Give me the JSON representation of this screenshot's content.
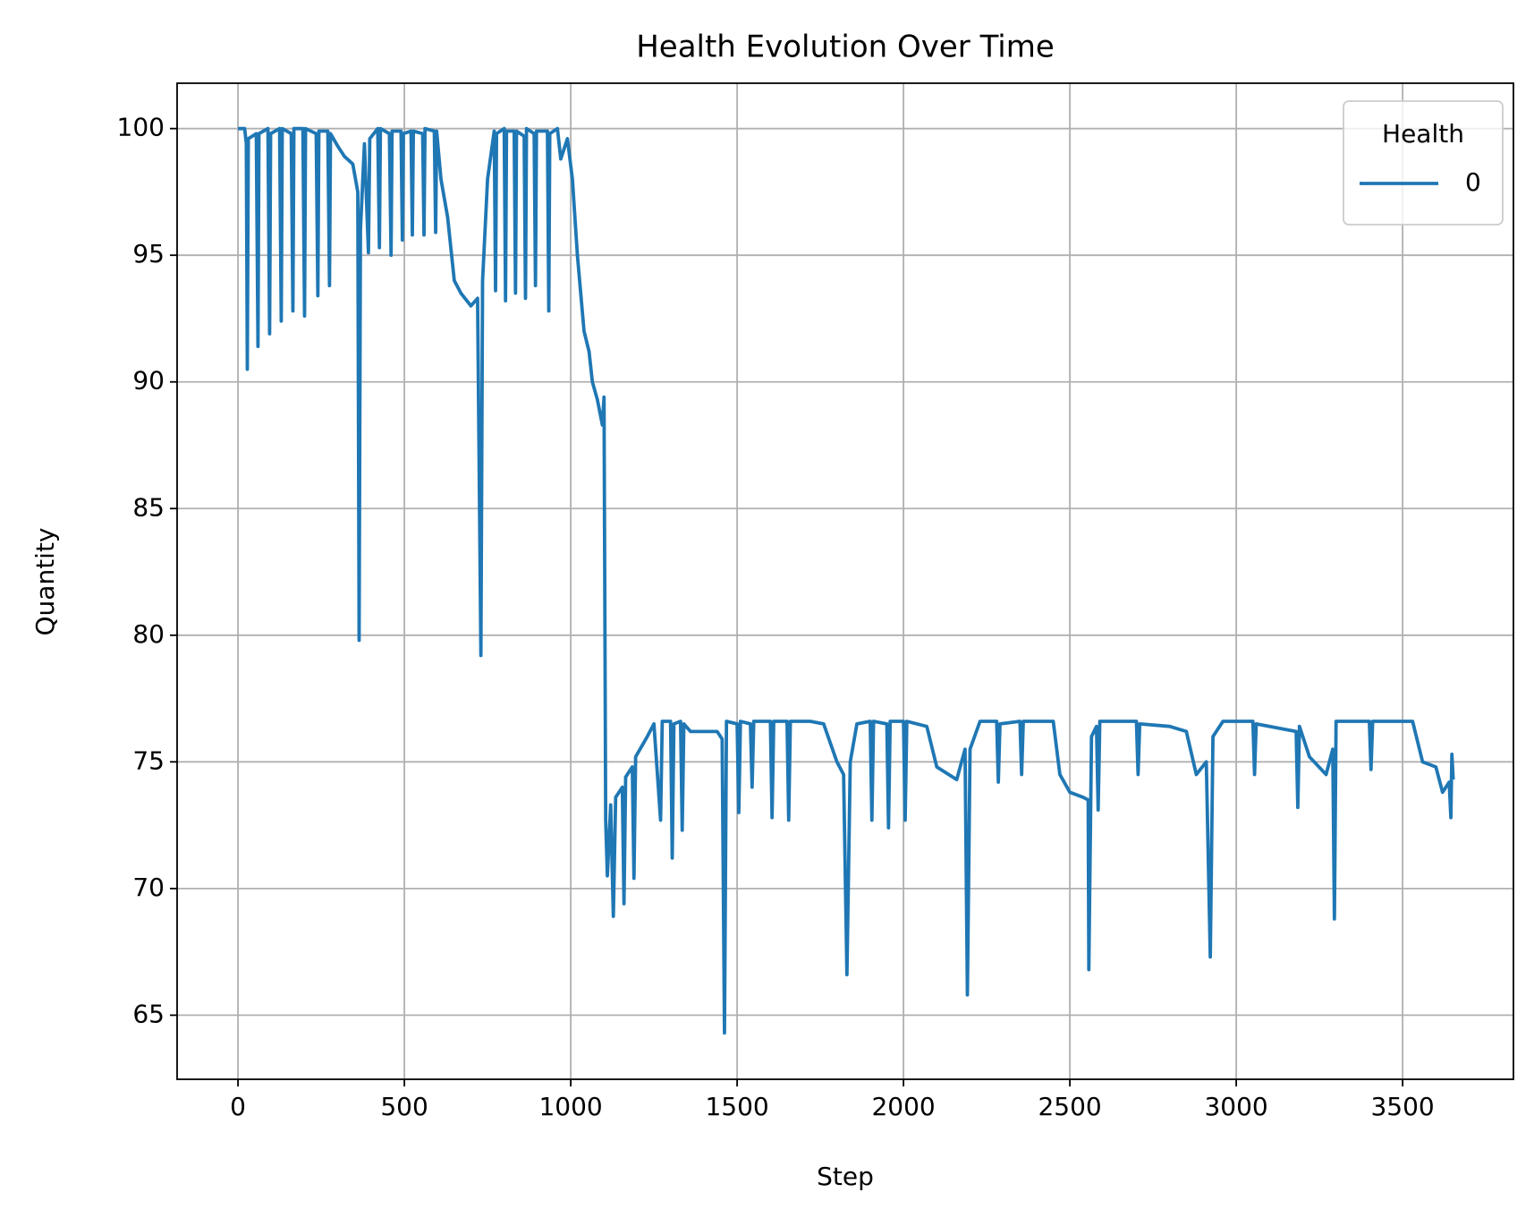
{
  "chart_data": {
    "type": "line",
    "title": "Health Evolution Over Time",
    "xlabel": "Step",
    "ylabel": "Quantity",
    "x": [
      0,
      20,
      25,
      28,
      31,
      55,
      60,
      63,
      90,
      95,
      98,
      125,
      130,
      133,
      160,
      165,
      168,
      195,
      200,
      203,
      235,
      240,
      243,
      270,
      275,
      278,
      300,
      320,
      345,
      360,
      364,
      368,
      380,
      392,
      396,
      420,
      425,
      428,
      455,
      460,
      463,
      490,
      494,
      497,
      520,
      524,
      527,
      555,
      559,
      562,
      590,
      594,
      597,
      610,
      630,
      650,
      670,
      700,
      720,
      730,
      735,
      750,
      770,
      774,
      777,
      800,
      804,
      807,
      830,
      834,
      837,
      860,
      864,
      867,
      890,
      894,
      897,
      930,
      934,
      937,
      960,
      970,
      990,
      1005,
      1020,
      1040,
      1055,
      1065,
      1080,
      1095,
      1100,
      1105,
      1110,
      1120,
      1128,
      1135,
      1155,
      1160,
      1165,
      1185,
      1190,
      1195,
      1230,
      1250,
      1270,
      1275,
      1300,
      1305,
      1310,
      1330,
      1335,
      1340,
      1360,
      1440,
      1455,
      1462,
      1468,
      1500,
      1505,
      1510,
      1540,
      1545,
      1550,
      1600,
      1605,
      1610,
      1650,
      1655,
      1660,
      1700,
      1720,
      1760,
      1800,
      1820,
      1830,
      1840,
      1860,
      1900,
      1905,
      1910,
      1950,
      1955,
      1960,
      2000,
      2005,
      2010,
      2070,
      2100,
      2160,
      2185,
      2192,
      2200,
      2230,
      2280,
      2285,
      2290,
      2350,
      2355,
      2360,
      2450,
      2470,
      2500,
      2540,
      2555,
      2557,
      2565,
      2580,
      2585,
      2590,
      2700,
      2705,
      2710,
      2800,
      2850,
      2880,
      2910,
      2922,
      2930,
      2960,
      3050,
      3055,
      3060,
      3180,
      3185,
      3190,
      3220,
      3270,
      3290,
      3295,
      3300,
      3400,
      3405,
      3410,
      3530,
      3560,
      3600,
      3620,
      3640,
      3645,
      3648,
      3652
    ],
    "series": [
      {
        "name": "0",
        "color": "#1f77b4",
        "values": [
          100,
          100,
          99.4,
          90.5,
          99.6,
          99.8,
          91.4,
          99.8,
          100,
          91.9,
          99.8,
          100,
          92.4,
          100,
          99.8,
          92.8,
          100,
          100,
          92.6,
          100,
          99.8,
          93.4,
          99.9,
          99.9,
          93.8,
          99.8,
          99.3,
          98.9,
          98.6,
          97.5,
          79.8,
          96,
          99.4,
          95.1,
          99.6,
          100,
          95.3,
          100,
          99.8,
          95,
          99.9,
          99.9,
          95.6,
          99.8,
          99.9,
          95.8,
          99.9,
          99.8,
          95.8,
          100,
          99.9,
          95.9,
          99.9,
          98,
          96.5,
          94,
          93.5,
          93,
          93.3,
          79.2,
          94,
          98,
          99.9,
          93.6,
          99.8,
          100,
          93.2,
          99.9,
          99.9,
          93.5,
          99.9,
          99.7,
          93.3,
          100,
          99.8,
          93.8,
          99.9,
          99.9,
          92.8,
          99.8,
          100,
          98.8,
          99.6,
          98,
          95,
          92,
          91.2,
          90,
          89.3,
          88.3,
          89.4,
          72.7,
          70.5,
          73.3,
          68.9,
          73.6,
          74,
          69.4,
          74.4,
          74.8,
          70.4,
          75.2,
          76,
          76.5,
          72.7,
          76.6,
          76.6,
          71.2,
          76.5,
          76.6,
          72.3,
          76.5,
          76.2,
          76.2,
          75.9,
          64.3,
          76.6,
          76.5,
          73,
          76.6,
          76.5,
          74,
          76.6,
          76.6,
          72.8,
          76.6,
          76.6,
          72.7,
          76.6,
          76.6,
          76.6,
          76.5,
          75,
          74.5,
          66.6,
          75,
          76.5,
          76.6,
          72.7,
          76.6,
          76.5,
          72.4,
          76.6,
          76.6,
          72.7,
          76.6,
          76.4,
          74.8,
          74.3,
          75.5,
          65.8,
          75.5,
          76.6,
          76.6,
          74.2,
          76.5,
          76.6,
          74.5,
          76.6,
          76.6,
          74.5,
          73.8,
          73.6,
          73.5,
          66.8,
          76,
          76.4,
          73.1,
          76.6,
          76.6,
          74.5,
          76.5,
          76.4,
          76.2,
          74.5,
          75,
          67.3,
          76,
          76.6,
          76.6,
          74.5,
          76.5,
          76.2,
          73.2,
          76.4,
          75.2,
          74.5,
          75.5,
          68.8,
          76.6,
          76.6,
          74.7,
          76.6,
          76.6,
          75,
          74.8,
          73.8,
          74.2,
          72.8,
          75.3,
          74.3
        ]
      }
    ],
    "legend_title": "Health",
    "legend": "upper right",
    "xlim": [
      -183,
      3833
    ],
    "ylim": [
      62.47,
      101.79
    ],
    "xticks": [
      0,
      500,
      1000,
      1500,
      2000,
      2500,
      3000,
      3500
    ],
    "yticks": [
      65,
      70,
      75,
      80,
      85,
      90,
      95,
      100
    ],
    "grid": true
  }
}
